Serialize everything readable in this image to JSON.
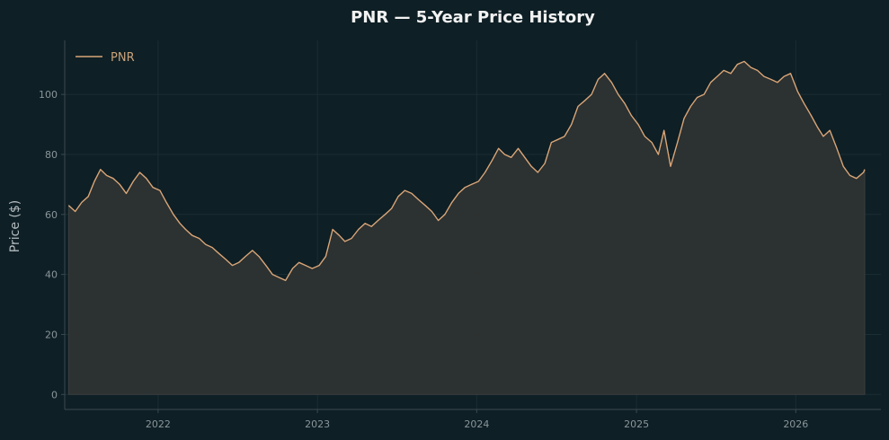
{
  "chart_data": {
    "type": "area",
    "title": "PNR — 5-Year Price History",
    "xlabel": "",
    "ylabel": "Price ($)",
    "xlim": [
      "2021-06-01",
      "2026-07-15"
    ],
    "ylim": [
      -5,
      118
    ],
    "grid": true,
    "legend": "top-left",
    "line_color": "#d9a577",
    "fill_color": "#2e3332",
    "x_ticks": [
      "2022",
      "2023",
      "2024",
      "2025",
      "2026"
    ],
    "y_ticks": [
      0,
      20,
      40,
      60,
      80,
      100
    ],
    "series": [
      {
        "name": "PNR",
        "x": [
          "2021-06-10",
          "2021-06-25",
          "2021-07-10",
          "2021-07-25",
          "2021-08-08",
          "2021-08-22",
          "2021-09-05",
          "2021-09-20",
          "2021-10-05",
          "2021-10-20",
          "2021-11-05",
          "2021-11-20",
          "2021-12-05",
          "2021-12-20",
          "2022-01-05",
          "2022-01-20",
          "2022-02-05",
          "2022-02-20",
          "2022-03-05",
          "2022-03-20",
          "2022-04-05",
          "2022-04-20",
          "2022-05-05",
          "2022-05-20",
          "2022-06-05",
          "2022-06-20",
          "2022-07-05",
          "2022-07-20",
          "2022-08-05",
          "2022-08-20",
          "2022-09-05",
          "2022-09-20",
          "2022-10-05",
          "2022-10-20",
          "2022-11-05",
          "2022-11-20",
          "2022-12-05",
          "2022-12-20",
          "2023-01-05",
          "2023-01-20",
          "2023-02-05",
          "2023-02-20",
          "2023-03-05",
          "2023-03-20",
          "2023-04-05",
          "2023-04-20",
          "2023-05-05",
          "2023-05-20",
          "2023-06-05",
          "2023-06-20",
          "2023-07-05",
          "2023-07-20",
          "2023-08-05",
          "2023-08-20",
          "2023-09-05",
          "2023-09-20",
          "2023-10-05",
          "2023-10-20",
          "2023-11-05",
          "2023-11-20",
          "2023-12-05",
          "2023-12-20",
          "2024-01-05",
          "2024-01-20",
          "2024-02-05",
          "2024-02-20",
          "2024-03-05",
          "2024-03-20",
          "2024-04-05",
          "2024-04-20",
          "2024-05-05",
          "2024-05-20",
          "2024-06-05",
          "2024-06-20",
          "2024-07-05",
          "2024-07-20",
          "2024-08-05",
          "2024-08-20",
          "2024-09-05",
          "2024-09-20",
          "2024-10-05",
          "2024-10-20",
          "2024-11-05",
          "2024-11-20",
          "2024-12-05",
          "2024-12-20",
          "2025-01-05",
          "2025-01-20",
          "2025-02-05",
          "2025-02-20",
          "2025-03-05",
          "2025-03-20",
          "2025-04-05",
          "2025-04-20",
          "2025-05-05",
          "2025-05-20",
          "2025-06-05",
          "2025-06-20",
          "2025-07-05",
          "2025-07-20",
          "2025-08-05",
          "2025-08-20",
          "2025-09-05",
          "2025-09-20",
          "2025-10-05",
          "2025-10-20",
          "2025-11-05",
          "2025-11-20",
          "2025-12-05",
          "2025-12-20",
          "2026-01-05",
          "2026-01-20",
          "2026-02-05",
          "2026-02-20",
          "2026-03-05",
          "2026-03-20",
          "2026-04-05",
          "2026-04-20",
          "2026-05-05",
          "2026-05-20",
          "2026-06-05",
          "2026-06-08"
        ],
        "values": [
          63,
          61,
          64,
          66,
          71,
          75,
          73,
          72,
          70,
          67,
          71,
          74,
          72,
          69,
          68,
          64,
          60,
          57,
          55,
          53,
          52,
          50,
          49,
          47,
          45,
          43,
          44,
          46,
          48,
          46,
          43,
          40,
          39,
          38,
          42,
          44,
          43,
          42,
          43,
          46,
          55,
          53,
          51,
          52,
          55,
          57,
          56,
          58,
          60,
          62,
          66,
          68,
          67,
          65,
          63,
          61,
          58,
          60,
          64,
          67,
          69,
          70,
          71,
          74,
          78,
          82,
          80,
          79,
          82,
          79,
          76,
          74,
          77,
          84,
          85,
          86,
          90,
          96,
          98,
          100,
          105,
          107,
          104,
          100,
          97,
          93,
          90,
          86,
          84,
          80,
          88,
          76,
          84,
          92,
          96,
          99,
          100,
          104,
          106,
          108,
          107,
          110,
          111,
          109,
          108,
          106,
          105,
          104,
          106,
          107,
          101,
          97,
          93,
          89,
          86,
          88,
          82,
          76,
          73,
          72,
          74,
          75
        ]
      }
    ]
  }
}
